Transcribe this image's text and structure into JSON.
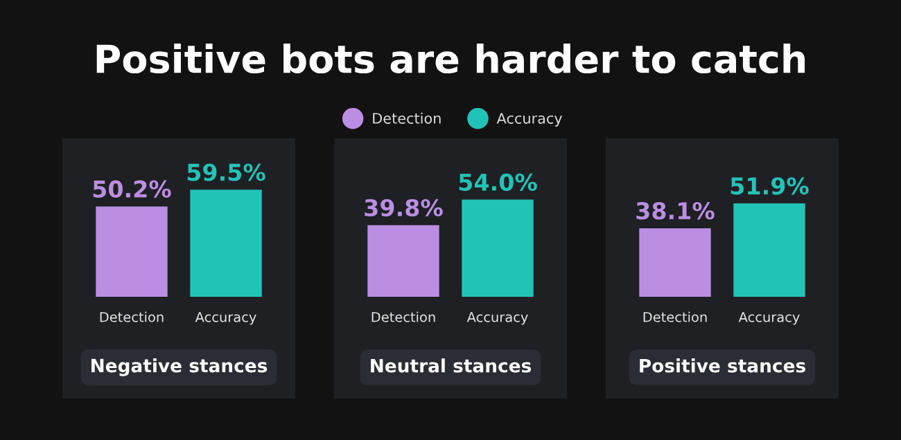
{
  "chart_data": [
    {
      "type": "bar",
      "annotations": [
        "Positive bots are harder to catch"
      ],
      "legend": "top",
      "title": "Negative stances",
      "categories": [
        "Detection",
        "Accuracy"
      ],
      "series": [
        {
          "name": "Detection",
          "color": "#bb8ee3",
          "values": [
            50.2,
            null
          ],
          "value_labels": [
            "50.2%",
            null
          ]
        },
        {
          "name": "Accuracy",
          "color": "#22c3b7",
          "values": [
            null,
            59.5
          ],
          "value_labels": [
            null,
            "59.5%"
          ]
        }
      ]
    },
    {
      "type": "bar",
      "title": "Neutral stances",
      "categories": [
        "Detection",
        "Accuracy"
      ],
      "values": [
        39.8,
        54.0
      ],
      "value_labels": [
        "39.8%",
        "54.0%"
      ],
      "colors": [
        "#bb8ee3",
        "#22c3b7"
      ]
    },
    {
      "type": "bar",
      "title": "Positive stances",
      "categories": [
        "Detection",
        "Accuracy"
      ],
      "values": [
        38.1,
        51.9
      ],
      "value_labels": [
        "38.1%",
        "51.9%"
      ],
      "colors": [
        "#bb8ee3",
        "#22c3b7"
      ]
    }
  ]
}
